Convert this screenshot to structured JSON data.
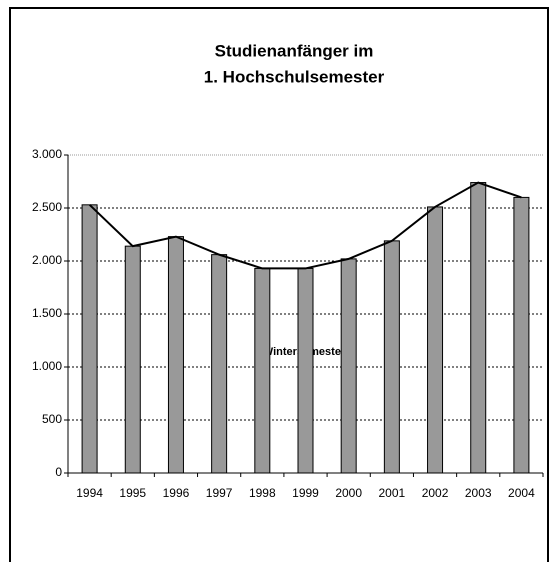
{
  "chart_data": {
    "type": "bar",
    "title": [
      "Studienanfänger im",
      "1. Hochschulsemester"
    ],
    "x_label": "Wintersemester",
    "categories": [
      "1994",
      "1995",
      "1996",
      "1997",
      "1998",
      "1999",
      "2000",
      "2001",
      "2002",
      "2003",
      "2004"
    ],
    "values": [
      2530,
      2140,
      2230,
      2060,
      1930,
      1930,
      2020,
      2190,
      2510,
      2740,
      2600
    ],
    "color": "#999999",
    "line": true,
    "line_color": "#000000",
    "ylim": [
      0,
      3000
    ],
    "yticks": [
      0,
      500,
      {
        "value": 1000,
        "label": "1.000"
      },
      {
        "value": 1500,
        "label": "1.500"
      },
      {
        "value": 2000,
        "label": "2.000"
      },
      {
        "value": 2500,
        "label": "2.500"
      },
      {
        "value": 3000,
        "label": "3.000"
      }
    ],
    "grid": true
  }
}
